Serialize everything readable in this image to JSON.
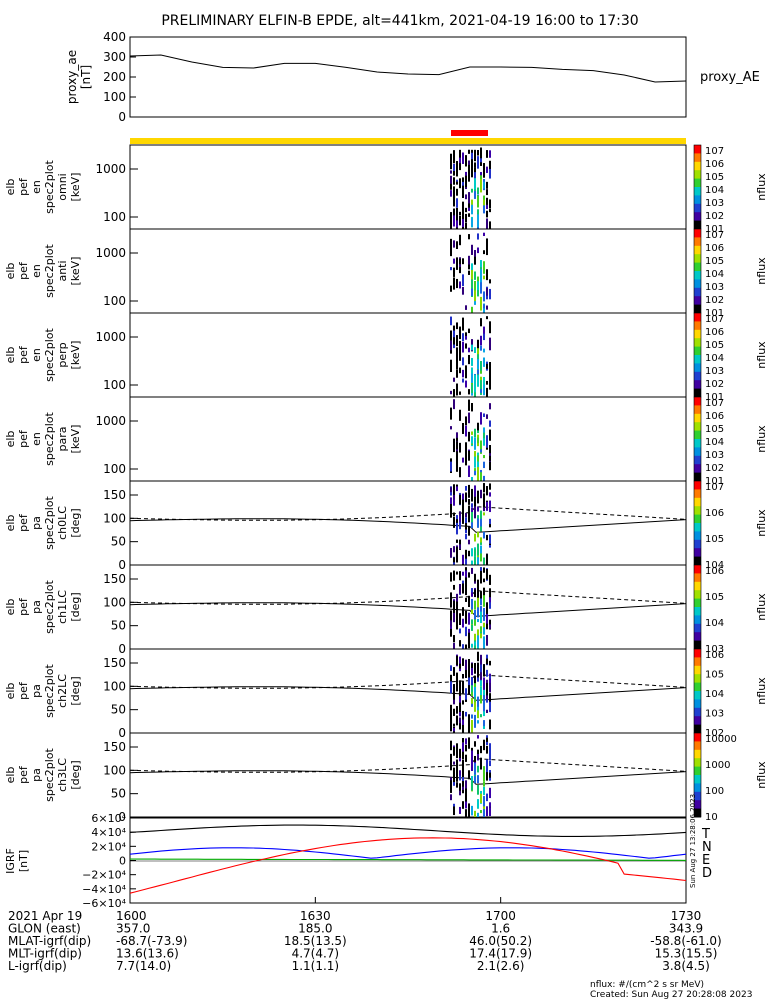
{
  "title": "PRELIMINARY ELFIN-B EPDE, alt=441km, 2021-04-19 16:00 to 17:30",
  "colors": {
    "science_zone_bar": "#ffd700",
    "collection_bar": "#ff0000",
    "grf_T": "#000000",
    "grf_N": "#0000ff",
    "grf_E": "#00aa00",
    "grf_D": "#ff0000"
  },
  "chart_data": [
    {
      "type": "line",
      "panel": "proxy_ae",
      "ylabel": [
        "proxy_ae",
        "[nT]"
      ],
      "series_label": "proxy_AE",
      "ylim": [
        0,
        400
      ],
      "yticks": [
        "0",
        "100",
        "200",
        "300",
        "400"
      ],
      "x": [
        0,
        5,
        10,
        15,
        20,
        25,
        30,
        35,
        40,
        45,
        50,
        55,
        60,
        65,
        70,
        75,
        80,
        85,
        90
      ],
      "values": [
        305,
        310,
        275,
        248,
        245,
        268,
        268,
        248,
        225,
        215,
        212,
        250,
        250,
        248,
        238,
        232,
        210,
        175,
        180
      ]
    },
    {
      "type": "heatmap",
      "panel": "omni",
      "ylabel": [
        "elb",
        "pef",
        "en",
        "spec2plot",
        "omni",
        "[keV]"
      ],
      "yticks": [
        "100",
        "1000"
      ],
      "ylog": true,
      "colorbar": {
        "label": "nflux",
        "ticks": [
          "101",
          "102",
          "103",
          "104",
          "105",
          "106",
          "107"
        ]
      }
    },
    {
      "type": "heatmap",
      "panel": "anti",
      "ylabel": [
        "elb",
        "pef",
        "en",
        "spec2plot",
        "anti",
        "[keV]"
      ],
      "yticks": [
        "100",
        "1000"
      ],
      "ylog": true,
      "colorbar": {
        "label": "nflux",
        "ticks": [
          "101",
          "102",
          "103",
          "104",
          "105",
          "106",
          "107"
        ]
      }
    },
    {
      "type": "heatmap",
      "panel": "perp",
      "ylabel": [
        "elb",
        "pef",
        "en",
        "spec2plot",
        "perp",
        "[keV]"
      ],
      "yticks": [
        "100",
        "1000"
      ],
      "ylog": true,
      "colorbar": {
        "label": "nflux",
        "ticks": [
          "101",
          "102",
          "103",
          "104",
          "105",
          "106",
          "107"
        ]
      }
    },
    {
      "type": "heatmap",
      "panel": "para",
      "ylabel": [
        "elb",
        "pef",
        "en",
        "spec2plot",
        "para",
        "[keV]"
      ],
      "yticks": [
        "100",
        "1000"
      ],
      "ylog": true,
      "colorbar": {
        "label": "nflux",
        "ticks": [
          "101",
          "102",
          "103",
          "104",
          "105",
          "106",
          "107"
        ]
      }
    },
    {
      "type": "heatmap",
      "panel": "ch0LC",
      "ylabel": [
        "elb",
        "pef",
        "pa",
        "spec2plot",
        "ch0LC",
        "[deg]"
      ],
      "yticks": [
        "0",
        "50",
        "100",
        "150"
      ],
      "ylim": [
        0,
        180
      ],
      "colorbar": {
        "label": "nflux",
        "ticks": [
          "104",
          "105",
          "106",
          "107"
        ]
      }
    },
    {
      "type": "heatmap",
      "panel": "ch1LC",
      "ylabel": [
        "elb",
        "pef",
        "pa",
        "spec2plot",
        "ch1LC",
        "[deg]"
      ],
      "yticks": [
        "0",
        "50",
        "100",
        "150"
      ],
      "ylim": [
        0,
        180
      ],
      "colorbar": {
        "label": "nflux",
        "ticks": [
          "103",
          "104",
          "105",
          "106"
        ]
      }
    },
    {
      "type": "heatmap",
      "panel": "ch2LC",
      "ylabel": [
        "elb",
        "pef",
        "pa",
        "spec2plot",
        "ch2LC",
        "[deg]"
      ],
      "yticks": [
        "0",
        "50",
        "100",
        "150"
      ],
      "ylim": [
        0,
        180
      ],
      "colorbar": {
        "label": "nflux",
        "ticks": [
          "102",
          "103",
          "104",
          "105",
          "106"
        ]
      }
    },
    {
      "type": "heatmap",
      "panel": "ch3LC",
      "ylabel": [
        "elb",
        "pef",
        "pa",
        "spec2plot",
        "ch3LC",
        "[deg]"
      ],
      "yticks": [
        "0",
        "50",
        "100",
        "150"
      ],
      "ylim": [
        0,
        180
      ],
      "colorbar": {
        "label": "nflux",
        "ticks": [
          "10",
          "100",
          "1000",
          "10000"
        ]
      }
    },
    {
      "type": "line",
      "panel": "IGRF",
      "ylabel": [
        "IGRF",
        "[nT]"
      ],
      "yticks": [
        "−6×10⁴",
        "−4×10⁴",
        "−2×10⁴",
        "0",
        "2×10⁴",
        "4×10⁴",
        "6×10⁴"
      ],
      "ylim": [
        -60000,
        60000
      ],
      "legend": [
        "T",
        "N",
        "E",
        "D"
      ],
      "side_stamp": "Sun Aug 27 13:28:06 2023"
    }
  ],
  "xaxis": {
    "ticks": [
      "1600",
      "1630",
      "1700",
      "1730"
    ],
    "rows": [
      {
        "label": "2021 Apr 19",
        "values": [
          "1600",
          "1630",
          "1700",
          "1730"
        ]
      },
      {
        "label": "GLON (east)",
        "values": [
          "357.0",
          "185.0",
          "1.6",
          "343.9"
        ]
      },
      {
        "label": "MLAT-igrf(dip)",
        "values": [
          "-68.7(-73.9)",
          "18.5(13.5)",
          "46.0(50.2)",
          "-58.8(-61.0)"
        ]
      },
      {
        "label": "MLT-igrf(dip)",
        "values": [
          "13.6(13.6)",
          "4.7(4.7)",
          "17.4(17.9)",
          "15.3(15.5)"
        ]
      },
      {
        "label": "L-igrf(dip)",
        "values": [
          "7.7(14.0)",
          "1.1(1.1)",
          "2.1(2.6)",
          "3.8(4.5)"
        ]
      }
    ]
  },
  "footer": {
    "units": "nflux: #/(cm^2 s sr MeV)",
    "created": "Created: Sun Aug 27 20:28:08 2023"
  }
}
